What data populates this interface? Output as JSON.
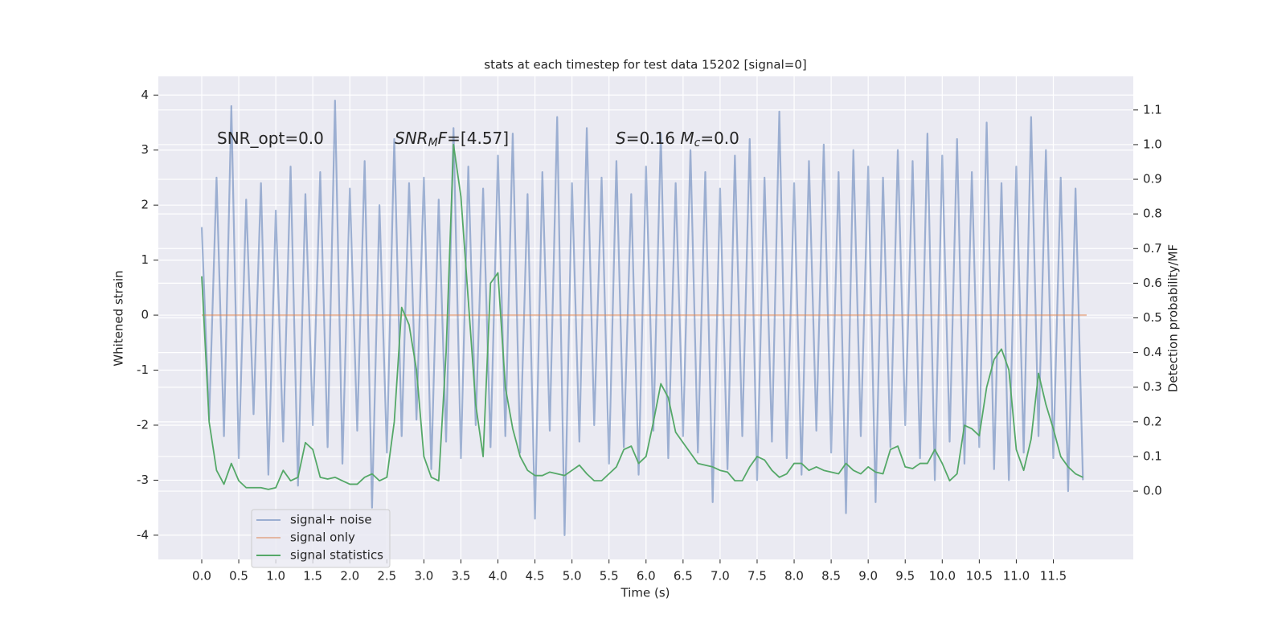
{
  "chart_data": {
    "type": "line",
    "title": "stats at each timestep for test data 15202 [signal=0]",
    "x_label": "Time (s)",
    "y_label": "Whitened strain",
    "y2_label": "Detection probability/MF",
    "x": [
      0,
      0.1,
      0.2,
      0.3,
      0.4,
      0.5,
      0.6,
      0.7,
      0.8,
      0.9,
      1.0,
      1.1,
      1.2,
      1.3,
      1.4,
      1.5,
      1.6,
      1.7,
      1.8,
      1.9,
      2.0,
      2.1,
      2.2,
      2.3,
      2.4,
      2.5,
      2.6,
      2.7,
      2.8,
      2.9,
      3.0,
      3.1,
      3.2,
      3.3,
      3.4,
      3.5,
      3.6,
      3.7,
      3.8,
      3.9,
      4.0,
      4.1,
      4.2,
      4.3,
      4.4,
      4.5,
      4.6,
      4.7,
      4.8,
      4.9,
      5.0,
      5.1,
      5.2,
      5.3,
      5.4,
      5.5,
      5.6,
      5.7,
      5.8,
      5.9,
      6.0,
      6.1,
      6.2,
      6.3,
      6.4,
      6.5,
      6.6,
      6.7,
      6.8,
      6.9,
      7.0,
      7.1,
      7.2,
      7.3,
      7.4,
      7.5,
      7.6,
      7.7,
      7.8,
      7.9,
      8.0,
      8.1,
      8.2,
      8.3,
      8.4,
      8.5,
      8.6,
      8.7,
      8.8,
      8.9,
      9.0,
      9.1,
      9.2,
      9.3,
      9.4,
      9.5,
      9.6,
      9.7,
      9.8,
      9.9,
      10.0,
      10.1,
      10.2,
      10.3,
      10.4,
      10.5,
      10.6,
      10.7,
      10.8,
      10.9,
      11.0,
      11.1,
      11.2,
      11.3,
      11.4,
      11.5,
      11.6,
      11.7,
      11.8,
      11.9
    ],
    "series": [
      {
        "name": "signal+ noise",
        "color": "#4c72b0",
        "opacity": 0.5,
        "values": [
          1.6,
          -1.9,
          2.5,
          -2.2,
          3.8,
          -2.6,
          2.1,
          -1.8,
          2.4,
          -2.9,
          1.9,
          -2.3,
          2.7,
          -3.1,
          2.2,
          -2.0,
          2.6,
          -2.4,
          3.9,
          -2.7,
          2.3,
          -2.1,
          2.8,
          -3.5,
          2.0,
          -2.5,
          3.2,
          -2.2,
          2.4,
          -1.9,
          2.5,
          -2.8,
          2.1,
          -2.3,
          3.4,
          -2.6,
          2.7,
          -2.0,
          2.3,
          -2.4,
          2.9,
          -2.2,
          3.3,
          -2.5,
          2.2,
          -3.7,
          2.6,
          -2.1,
          3.6,
          -4.0,
          2.4,
          -2.3,
          3.4,
          -2.0,
          2.5,
          -2.7,
          2.8,
          -2.4,
          2.2,
          -2.9,
          2.7,
          -2.1,
          3.3,
          -2.6,
          2.4,
          -2.2,
          3.0,
          -2.5,
          2.6,
          -3.4,
          2.3,
          -2.8,
          2.9,
          -2.2,
          3.2,
          -3.0,
          2.5,
          -2.3,
          3.7,
          -2.6,
          2.4,
          -2.9,
          2.8,
          -2.1,
          3.1,
          -2.5,
          2.6,
          -3.6,
          3.0,
          -2.2,
          2.7,
          -3.4,
          2.5,
          -2.4,
          3.0,
          -2.0,
          2.8,
          -2.6,
          3.3,
          -3.0,
          2.9,
          -2.3,
          3.2,
          -2.7,
          2.6,
          -2.4,
          3.5,
          -2.8,
          2.4,
          -3.0,
          2.7,
          -2.5,
          3.6,
          -2.2,
          3.0,
          -2.6,
          2.5,
          -3.2,
          2.3,
          -3.0
        ]
      },
      {
        "name": "signal only",
        "color": "#dd8452",
        "opacity": 0.5,
        "x": [
          0,
          11.95
        ],
        "values": [
          0,
          0
        ]
      },
      {
        "name": "signal statistics",
        "color": "#55a868",
        "opacity": 1,
        "axis": "y2",
        "values": [
          0.62,
          0.2,
          0.06,
          0.02,
          0.08,
          0.03,
          0.01,
          0.01,
          0.01,
          0.005,
          0.01,
          0.06,
          0.03,
          0.04,
          0.14,
          0.12,
          0.04,
          0.035,
          0.04,
          0.03,
          0.02,
          0.02,
          0.04,
          0.05,
          0.03,
          0.04,
          0.2,
          0.53,
          0.48,
          0.35,
          0.1,
          0.04,
          0.03,
          0.4,
          1.0,
          0.85,
          0.55,
          0.25,
          0.1,
          0.6,
          0.63,
          0.3,
          0.18,
          0.1,
          0.06,
          0.045,
          0.045,
          0.055,
          0.05,
          0.045,
          0.06,
          0.075,
          0.05,
          0.03,
          0.03,
          0.05,
          0.07,
          0.12,
          0.13,
          0.08,
          0.1,
          0.2,
          0.31,
          0.27,
          0.17,
          0.14,
          0.11,
          0.08,
          0.075,
          0.07,
          0.06,
          0.055,
          0.03,
          0.03,
          0.07,
          0.1,
          0.09,
          0.06,
          0.04,
          0.05,
          0.08,
          0.08,
          0.06,
          0.07,
          0.06,
          0.055,
          0.05,
          0.08,
          0.06,
          0.05,
          0.07,
          0.055,
          0.05,
          0.12,
          0.13,
          0.07,
          0.065,
          0.08,
          0.08,
          0.12,
          0.08,
          0.03,
          0.05,
          0.19,
          0.18,
          0.16,
          0.3,
          0.38,
          0.41,
          0.35,
          0.12,
          0.06,
          0.15,
          0.34,
          0.25,
          0.18,
          0.1,
          0.07,
          0.05,
          0.04
        ]
      }
    ],
    "xlim": [
      -0.586,
      12.58
    ],
    "xticks": [
      {
        "value": 0,
        "label": "0.0"
      },
      0.5,
      {
        "value": 1,
        "label": "1.0"
      },
      1.5,
      {
        "value": 2,
        "label": "2.0"
      },
      2.5,
      {
        "value": 3,
        "label": "3.0"
      },
      3.5,
      {
        "value": 4,
        "label": "4.0"
      },
      4.5,
      {
        "value": 5,
        "label": "5.0"
      },
      5.5,
      {
        "value": 6,
        "label": "6.0"
      },
      6.5,
      {
        "value": 7,
        "label": "7.0"
      },
      7.5,
      {
        "value": 8,
        "label": "8.0"
      },
      8.5,
      {
        "value": 9,
        "label": "9.0"
      },
      9.5,
      {
        "value": 10,
        "label": "10.0"
      },
      10.5,
      {
        "value": 11,
        "label": "11.0"
      },
      11.5
    ],
    "ylim": [
      -4.44,
      4.34
    ],
    "yticks": [
      -4,
      -3,
      -2,
      -1,
      0,
      1,
      2,
      3,
      4
    ],
    "y2lim": [
      -0.197,
      1.197
    ],
    "y2ticks": [
      {
        "value": 0,
        "label": "0.0"
      },
      0.1,
      0.2,
      0.3,
      0.4,
      0.5,
      0.6,
      0.7,
      0.8,
      0.9,
      {
        "value": 1,
        "label": "1.0"
      },
      1.1
    ],
    "grid": true,
    "legend": "lower left",
    "annotations": [
      [
        {
          "text": "SNR_opt=0.0",
          "style": "normal"
        }
      ],
      [
        {
          "text": "SNR",
          "style": "italic"
        },
        {
          "text": "M",
          "style": "sub"
        },
        {
          "text": "F",
          "style": "italic"
        },
        {
          "text": "=[4.57]",
          "style": "normal"
        }
      ],
      [
        {
          "text": "S",
          "style": "italic"
        },
        {
          "text": "=0.16   ",
          "style": "normal"
        },
        {
          "text": "M",
          "style": "italic"
        },
        {
          "text": "c",
          "style": "sub"
        },
        {
          "text": "=0.0",
          "style": "normal"
        }
      ]
    ]
  }
}
